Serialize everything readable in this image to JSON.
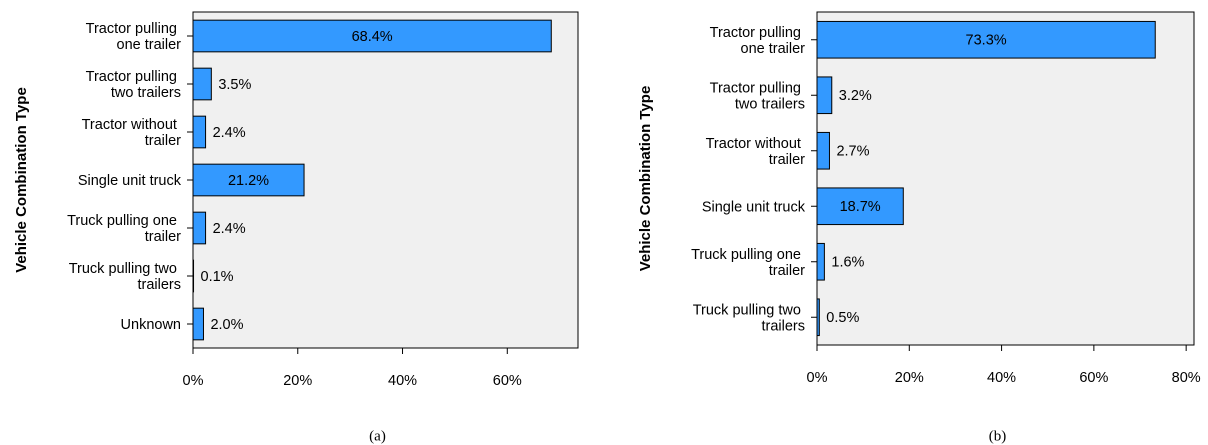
{
  "chart_data": [
    {
      "type": "bar",
      "orientation": "horizontal",
      "caption": "(a)",
      "ylabel": "Vehicle Combination Type",
      "categories": [
        "Tractor pulling one trailer",
        "Tractor pulling two trailers",
        "Tractor without trailer",
        "Single unit truck",
        "Truck pulling one trailer",
        "Truck pulling two trailers",
        "Unknown"
      ],
      "values": [
        68.4,
        3.5,
        2.4,
        21.2,
        2.4,
        0.1,
        2.0
      ],
      "value_labels": [
        "68.4%",
        "3.5%",
        "2.4%",
        "21.2%",
        "2.4%",
        "0.1%",
        "2.0%"
      ],
      "color": "#3399ff",
      "xlim": [
        0,
        73.5
      ],
      "xticks": [
        {
          "value": 0,
          "label": "0%"
        },
        {
          "value": 20,
          "label": "20%"
        },
        {
          "value": 40,
          "label": "40%"
        },
        {
          "value": 60,
          "label": "60%"
        }
      ]
    },
    {
      "type": "bar",
      "orientation": "horizontal",
      "caption": "(b)",
      "ylabel": "Vehicle Combination Type",
      "categories": [
        "Tractor pulling one trailer",
        "Tractor pulling two trailers",
        "Tractor without trailer",
        "Single unit truck",
        "Truck pulling one trailer",
        "Truck pulling two trailers"
      ],
      "values": [
        73.3,
        3.2,
        2.7,
        18.7,
        1.6,
        0.5
      ],
      "value_labels": [
        "73.3%",
        "3.2%",
        "2.7%",
        "18.7%",
        "1.6%",
        "0.5%"
      ],
      "color": "#3399ff",
      "xlim": [
        0,
        81.7
      ],
      "xticks": [
        {
          "value": 0,
          "label": "0%"
        },
        {
          "value": 20,
          "label": "20%"
        },
        {
          "value": 40,
          "label": "40%"
        },
        {
          "value": 60,
          "label": "60%"
        },
        {
          "value": 80,
          "label": "80%"
        }
      ]
    }
  ]
}
